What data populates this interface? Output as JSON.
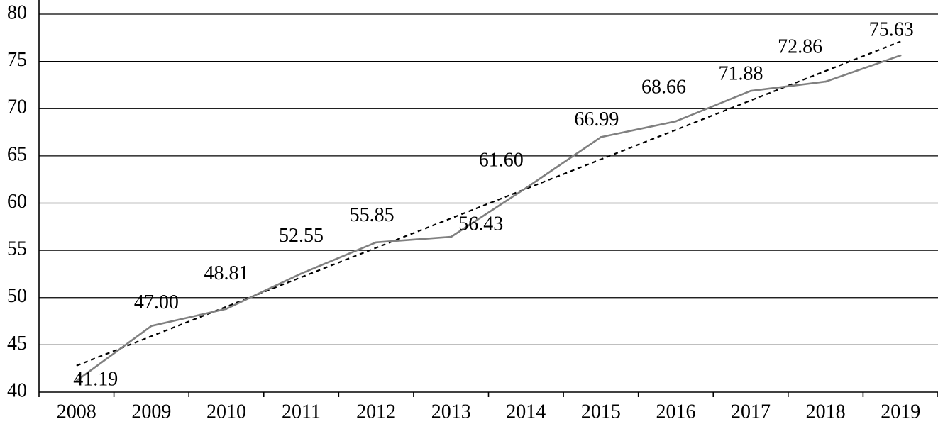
{
  "chart_data": {
    "type": "line",
    "title": "",
    "xlabel": "",
    "ylabel": "",
    "categories": [
      "2008",
      "2009",
      "2010",
      "2011",
      "2012",
      "2013",
      "2014",
      "2015",
      "2016",
      "2017",
      "2018",
      "2019"
    ],
    "series": [
      {
        "values": [
          41.19,
          47.0,
          48.81,
          52.55,
          55.85,
          56.43,
          61.6,
          66.99,
          68.66,
          71.88,
          72.86,
          75.63
        ],
        "labels": [
          "41.19",
          "47.00",
          "48.81",
          "52.55",
          "55.85",
          "56.43",
          "61.60",
          "66.99",
          "68.66",
          "71.88",
          "72.86",
          "75.63"
        ],
        "color": "#808080",
        "style": "solid"
      }
    ],
    "trendline": {
      "type": "linear",
      "style": "dotted",
      "color": "#000000"
    },
    "ylim": [
      40,
      80
    ],
    "yticks": [
      "40",
      "45",
      "50",
      "55",
      "60",
      "65",
      "70",
      "75",
      "80"
    ],
    "grid": true,
    "legend": "none"
  }
}
